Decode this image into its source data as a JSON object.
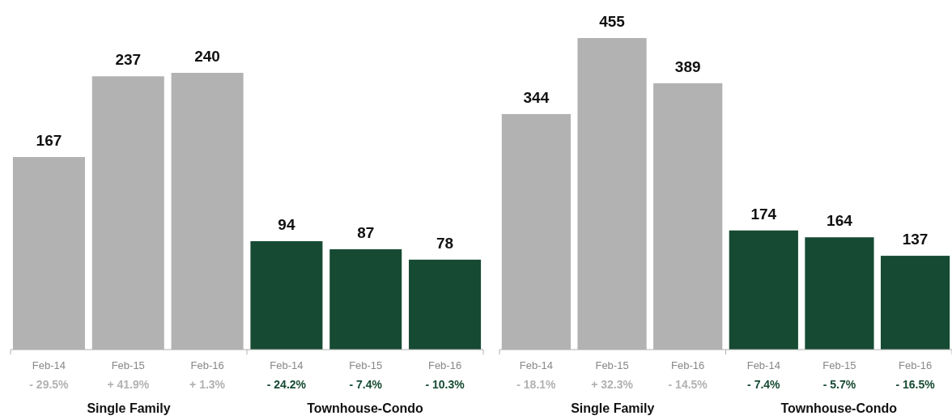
{
  "chart_data": [
    {
      "type": "bar",
      "categories": [
        "Feb-14",
        "Feb-15",
        "Feb-16",
        "Feb-14",
        "Feb-15",
        "Feb-16"
      ],
      "values": [
        167,
        237,
        240,
        94,
        87,
        78
      ],
      "colors": [
        "#b2b2b2",
        "#b2b2b2",
        "#b2b2b2",
        "#164a33",
        "#164a33",
        "#164a33"
      ],
      "data_labels": true,
      "annotations": [
        "- 29.5%",
        "+ 41.9%",
        "+ 1.3%",
        "- 24.2%",
        "- 7.4%",
        "- 10.3%",
        "Single Family",
        "Townhouse-Condo"
      ]
    },
    {
      "type": "bar",
      "categories": [
        "Feb-14",
        "Feb-15",
        "Feb-16",
        "Feb-14",
        "Feb-15",
        "Feb-16"
      ],
      "values": [
        344,
        455,
        389,
        174,
        164,
        137
      ],
      "colors": [
        "#b2b2b2",
        "#b2b2b2",
        "#b2b2b2",
        "#164a33",
        "#164a33",
        "#164a33"
      ],
      "data_labels": true,
      "annotations": [
        "- 18.1%",
        "+ 32.3%",
        "- 14.5%",
        "- 7.4%",
        "- 5.7%",
        "- 16.5%",
        "Single Family",
        "Townhouse-Condo"
      ]
    }
  ]
}
